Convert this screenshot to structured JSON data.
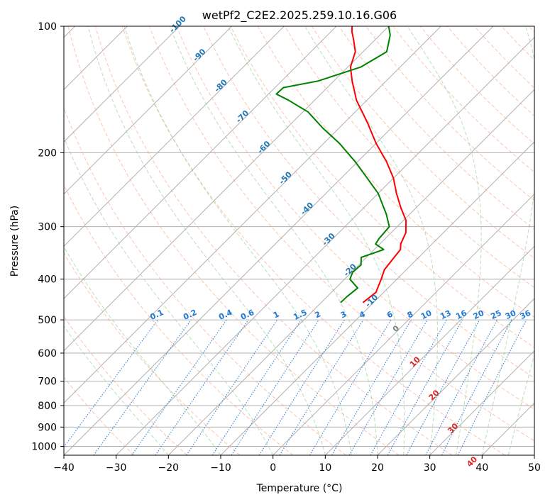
{
  "chart_data": {
    "type": "skew-t",
    "title": "wetPf2_C2E2.2025.259.10.16.G06",
    "xlabel": "Temperature (°C)",
    "ylabel": "Pressure (hPa)",
    "xlim": [
      -40,
      50
    ],
    "ylim": [
      1050,
      100
    ],
    "x_ticks": [
      -40,
      -30,
      -20,
      -10,
      0,
      10,
      20,
      30,
      40,
      50
    ],
    "y_ticks": [
      1000,
      900,
      800,
      700,
      600,
      500,
      400,
      300,
      200,
      100
    ],
    "skew_degrees": 45,
    "series": [
      {
        "name": "temperature",
        "color": "#ff0000",
        "points": [
          [
            455,
            -12.0
          ],
          [
            430,
            -11.5
          ],
          [
            400,
            -13.0
          ],
          [
            380,
            -14.2
          ],
          [
            360,
            -14.6
          ],
          [
            340,
            -15.0
          ],
          [
            330,
            -16.0
          ],
          [
            310,
            -17.2
          ],
          [
            290,
            -19.5
          ],
          [
            270,
            -23.0
          ],
          [
            250,
            -26.5
          ],
          [
            230,
            -30.0
          ],
          [
            210,
            -34.5
          ],
          [
            190,
            -40.0
          ],
          [
            170,
            -45.5
          ],
          [
            150,
            -52.0
          ],
          [
            135,
            -56.5
          ],
          [
            125,
            -59.5
          ],
          [
            115,
            -61.5
          ],
          [
            108,
            -64.0
          ],
          [
            103,
            -66.0
          ],
          [
            100,
            -67.0
          ]
        ]
      },
      {
        "name": "dewpoint",
        "color": "#008000",
        "points": [
          [
            455,
            -16.3
          ],
          [
            440,
            -16.2
          ],
          [
            420,
            -15.8
          ],
          [
            400,
            -19.0
          ],
          [
            385,
            -19.8
          ],
          [
            370,
            -19.6
          ],
          [
            355,
            -21.0
          ],
          [
            340,
            -18.2
          ],
          [
            330,
            -20.8
          ],
          [
            320,
            -21.2
          ],
          [
            300,
            -21.5
          ],
          [
            280,
            -24.5
          ],
          [
            250,
            -30.0
          ],
          [
            230,
            -35.0
          ],
          [
            210,
            -40.5
          ],
          [
            190,
            -47.0
          ],
          [
            175,
            -53.0
          ],
          [
            160,
            -59.0
          ],
          [
            150,
            -65.0
          ],
          [
            145,
            -68.5
          ],
          [
            140,
            -68.4
          ],
          [
            135,
            -63.0
          ],
          [
            125,
            -57.5
          ],
          [
            115,
            -55.5
          ],
          [
            105,
            -58.0
          ],
          [
            100,
            -60.0
          ]
        ]
      }
    ],
    "isotherm_labels": [
      "-100",
      "-90",
      "-80",
      "-70",
      "-60",
      "-50",
      "-40",
      "-30",
      "-20",
      "-10"
    ],
    "isotherm_label_values": [
      -100,
      -90,
      -80,
      -70,
      -60,
      -50,
      -40,
      -30,
      -20,
      -10
    ],
    "mixing_ratio_labels": [
      "0.1",
      "0.2",
      "0.4",
      "0.6",
      "1",
      "1.5",
      "2",
      "3",
      "4",
      "6",
      "8",
      "10",
      "13",
      "16",
      "20",
      "25",
      "30",
      "36"
    ],
    "mixing_ratio_values": [
      0.1,
      0.2,
      0.4,
      0.6,
      1,
      1.5,
      2,
      3,
      4,
      6,
      8,
      10,
      13,
      16,
      20,
      25,
      30,
      36
    ],
    "mixing_ratio_label_pressure": 500,
    "warm_labels": [
      "0",
      "10",
      "20",
      "30",
      "40"
    ],
    "warm_label_values": [
      0,
      10,
      20,
      30,
      40
    ],
    "colors": {
      "grid": "#b0b0b0",
      "dry_adiabat": "#ff9c7a",
      "moist_adiabat": "#7fc47f",
      "mixing_ratio": "#1f77d4",
      "isotherm_label": "#1f77b4",
      "warm_label_zero": "#7f7f7f",
      "warm_label": "#d62728"
    }
  }
}
